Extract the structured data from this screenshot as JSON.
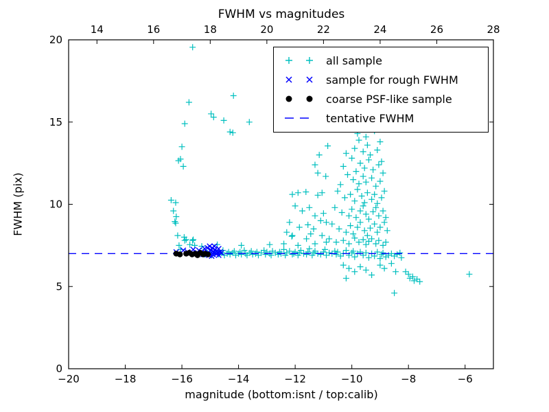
{
  "chart_data": {
    "type": "scatter",
    "title": "FWHM vs magnitudes",
    "xlabel": "magnitude (bottom:isnt / top:calib)",
    "ylabel": "FWHM (pix)",
    "grid": false,
    "legend_position": "upper right",
    "x_bottom": {
      "min": -20,
      "max": -5,
      "ticks": [
        -20,
        -18,
        -16,
        -14,
        -12,
        -10,
        -8,
        -6
      ]
    },
    "x_top": {
      "min": 13,
      "max": 28,
      "ticks": [
        14,
        16,
        18,
        20,
        22,
        24,
        26,
        28
      ]
    },
    "y": {
      "min": 0,
      "max": 20,
      "ticks": [
        0,
        5,
        10,
        15,
        20
      ]
    },
    "tentative_fwhm": 7.0,
    "colors": {
      "cyan": "#00bfbf",
      "blue": "#0000ff",
      "black": "#000000",
      "axis": "#000000"
    },
    "series": [
      {
        "name": "all sample",
        "marker": "plus",
        "color": "#00bfbf",
        "points": [
          [
            -15.62,
            19.55
          ],
          [
            -15.75,
            16.2
          ],
          [
            -14.97,
            15.5
          ],
          [
            -14.88,
            15.3
          ],
          [
            -14.52,
            15.1
          ],
          [
            -13.62,
            15.0
          ],
          [
            -14.18,
            16.6
          ],
          [
            -15.9,
            14.9
          ],
          [
            -14.3,
            14.4
          ],
          [
            -14.2,
            14.35
          ],
          [
            -16.0,
            13.5
          ],
          [
            -16.05,
            12.75
          ],
          [
            -16.12,
            12.65
          ],
          [
            -15.95,
            12.3
          ],
          [
            -16.38,
            10.25
          ],
          [
            -16.22,
            10.1
          ],
          [
            -16.3,
            9.6
          ],
          [
            -16.2,
            9.25
          ],
          [
            -16.25,
            8.95
          ],
          [
            -16.22,
            8.85
          ],
          [
            -16.15,
            8.1
          ],
          [
            -15.92,
            8.0
          ],
          [
            -16.1,
            7.5
          ],
          [
            -15.85,
            7.85
          ],
          [
            -15.62,
            7.8
          ],
          [
            -15.72,
            7.55
          ],
          [
            -15.55,
            7.5
          ],
          [
            -16.05,
            7.25
          ],
          [
            -15.3,
            7.45
          ],
          [
            -14.75,
            7.55
          ],
          [
            -12.1,
            10.6
          ],
          [
            -11.9,
            10.7
          ],
          [
            -11.62,
            10.75
          ],
          [
            -11.2,
            10.55
          ],
          [
            -12.0,
            9.9
          ],
          [
            -11.75,
            9.6
          ],
          [
            -11.5,
            9.8
          ],
          [
            -11.3,
            9.3
          ],
          [
            -12.2,
            8.9
          ],
          [
            -11.85,
            8.6
          ],
          [
            -11.55,
            8.75
          ],
          [
            -11.35,
            8.5
          ],
          [
            -11.1,
            9.0
          ],
          [
            -11.0,
            9.45
          ],
          [
            -10.9,
            8.9
          ],
          [
            -11.45,
            8.2
          ],
          [
            -11.05,
            8.1
          ],
          [
            -12.3,
            8.3
          ],
          [
            -12.12,
            8.05
          ],
          [
            -11.15,
            13.0
          ],
          [
            -10.85,
            13.55
          ],
          [
            -11.2,
            11.9
          ],
          [
            -10.92,
            11.7
          ],
          [
            -11.05,
            10.7
          ],
          [
            -11.3,
            12.4
          ],
          [
            -10.1,
            14.55
          ],
          [
            -9.8,
            14.3
          ],
          [
            -9.75,
            13.9
          ],
          [
            -9.5,
            14.1
          ],
          [
            -9.45,
            13.6
          ],
          [
            -9.2,
            14.45
          ],
          [
            -9.0,
            13.8
          ],
          [
            -9.9,
            13.4
          ],
          [
            -9.6,
            13.2
          ],
          [
            -9.35,
            13.0
          ],
          [
            -10.2,
            13.1
          ],
          [
            -9.1,
            13.3
          ],
          [
            -10.0,
            12.8
          ],
          [
            -9.7,
            12.5
          ],
          [
            -9.55,
            12.2
          ],
          [
            -9.4,
            12.7
          ],
          [
            -9.25,
            12.1
          ],
          [
            -9.05,
            12.4
          ],
          [
            -9.85,
            12.0
          ],
          [
            -10.3,
            12.3
          ],
          [
            -8.95,
            12.6
          ],
          [
            -10.15,
            11.8
          ],
          [
            -9.95,
            11.5
          ],
          [
            -9.75,
            11.25
          ],
          [
            -9.6,
            11.7
          ],
          [
            -9.5,
            11.35
          ],
          [
            -9.3,
            11.6
          ],
          [
            -9.15,
            11.1
          ],
          [
            -9.0,
            11.4
          ],
          [
            -8.9,
            11.9
          ],
          [
            -10.4,
            11.2
          ],
          [
            -10.5,
            10.8
          ],
          [
            -10.25,
            10.4
          ],
          [
            -10.05,
            10.6
          ],
          [
            -9.9,
            10.2
          ],
          [
            -9.8,
            10.9
          ],
          [
            -9.65,
            10.5
          ],
          [
            -9.55,
            10.1
          ],
          [
            -9.45,
            10.7
          ],
          [
            -9.3,
            10.3
          ],
          [
            -9.2,
            10.6
          ],
          [
            -9.1,
            10.05
          ],
          [
            -8.95,
            10.4
          ],
          [
            -8.85,
            10.8
          ],
          [
            -10.6,
            9.8
          ],
          [
            -10.35,
            9.5
          ],
          [
            -10.1,
            9.3
          ],
          [
            -10.0,
            9.7
          ],
          [
            -9.85,
            9.2
          ],
          [
            -9.7,
            9.6
          ],
          [
            -9.6,
            9.9
          ],
          [
            -9.5,
            9.4
          ],
          [
            -9.4,
            9.1
          ],
          [
            -9.25,
            9.55
          ],
          [
            -9.15,
            9.8
          ],
          [
            -9.05,
            9.3
          ],
          [
            -8.9,
            9.6
          ],
          [
            -8.8,
            9.2
          ],
          [
            -10.7,
            8.8
          ],
          [
            -10.45,
            8.5
          ],
          [
            -10.2,
            8.3
          ],
          [
            -10.05,
            8.7
          ],
          [
            -9.95,
            8.2
          ],
          [
            -9.8,
            8.6
          ],
          [
            -9.7,
            8.9
          ],
          [
            -9.55,
            8.4
          ],
          [
            -9.45,
            8.1
          ],
          [
            -9.35,
            8.55
          ],
          [
            -9.2,
            8.8
          ],
          [
            -9.1,
            8.3
          ],
          [
            -9.0,
            8.6
          ],
          [
            -8.85,
            8.9
          ],
          [
            -8.75,
            8.4
          ],
          [
            -10.8,
            7.9
          ],
          [
            -10.55,
            7.7
          ],
          [
            -10.3,
            7.8
          ],
          [
            -10.1,
            7.6
          ],
          [
            -9.9,
            7.95
          ],
          [
            -9.75,
            7.7
          ],
          [
            -9.6,
            7.85
          ],
          [
            -9.5,
            7.55
          ],
          [
            -9.4,
            7.75
          ],
          [
            -9.3,
            7.9
          ],
          [
            -9.15,
            7.6
          ],
          [
            -9.05,
            7.8
          ],
          [
            -8.9,
            7.5
          ],
          [
            -8.8,
            7.7
          ],
          [
            -15.25,
            7.1
          ],
          [
            -15.2,
            6.95
          ],
          [
            -15.1,
            7.05
          ],
          [
            -15.0,
            7.1
          ],
          [
            -14.95,
            6.9
          ],
          [
            -14.85,
            7.0
          ],
          [
            -14.8,
            7.15
          ],
          [
            -14.7,
            6.95
          ],
          [
            -14.6,
            7.05
          ],
          [
            -14.55,
            7.2
          ],
          [
            -14.5,
            6.9
          ],
          [
            -14.4,
            7.0
          ],
          [
            -14.35,
            7.1
          ],
          [
            -14.3,
            6.95
          ],
          [
            -14.2,
            7.05
          ],
          [
            -14.15,
            7.15
          ],
          [
            -14.1,
            6.9
          ],
          [
            -14.0,
            7.0
          ],
          [
            -13.95,
            7.1
          ],
          [
            -13.9,
            6.95
          ],
          [
            -13.8,
            7.2
          ],
          [
            -13.75,
            7.0
          ],
          [
            -13.7,
            6.9
          ],
          [
            -13.6,
            7.05
          ],
          [
            -13.55,
            7.15
          ],
          [
            -13.5,
            6.95
          ],
          [
            -13.4,
            7.0
          ],
          [
            -13.35,
            7.1
          ],
          [
            -13.3,
            6.9
          ],
          [
            -13.2,
            7.05
          ],
          [
            -13.1,
            7.2
          ],
          [
            -13.05,
            6.95
          ],
          [
            -13.0,
            7.1
          ],
          [
            -12.9,
            7.0
          ],
          [
            -12.85,
            6.9
          ],
          [
            -12.8,
            7.15
          ],
          [
            -12.7,
            7.05
          ],
          [
            -12.6,
            6.95
          ],
          [
            -12.55,
            7.1
          ],
          [
            -12.5,
            7.0
          ],
          [
            -12.4,
            7.25
          ],
          [
            -12.35,
            6.9
          ],
          [
            -12.3,
            7.05
          ],
          [
            -12.2,
            7.15
          ],
          [
            -12.1,
            6.95
          ],
          [
            -12.05,
            7.0
          ],
          [
            -12.0,
            7.1
          ],
          [
            -11.9,
            6.9
          ],
          [
            -11.85,
            7.05
          ],
          [
            -11.8,
            7.2
          ],
          [
            -11.7,
            7.0
          ],
          [
            -11.6,
            6.95
          ],
          [
            -11.55,
            7.1
          ],
          [
            -11.5,
            7.3
          ],
          [
            -11.4,
            6.9
          ],
          [
            -11.35,
            7.05
          ],
          [
            -11.3,
            7.15
          ],
          [
            -11.2,
            7.0
          ],
          [
            -11.1,
            6.95
          ],
          [
            -11.0,
            7.1
          ],
          [
            -10.95,
            7.25
          ],
          [
            -10.9,
            6.9
          ],
          [
            -10.8,
            7.05
          ],
          [
            -10.7,
            7.0
          ],
          [
            -10.6,
            7.15
          ],
          [
            -10.55,
            6.95
          ],
          [
            -10.5,
            7.1
          ],
          [
            -10.4,
            6.85
          ],
          [
            -10.3,
            7.0
          ],
          [
            -10.2,
            7.2
          ],
          [
            -10.1,
            6.9
          ],
          [
            -10.0,
            7.05
          ],
          [
            -9.95,
            7.15
          ],
          [
            -9.9,
            6.8
          ],
          [
            -9.8,
            7.0
          ],
          [
            -9.7,
            7.1
          ],
          [
            -9.6,
            6.9
          ],
          [
            -9.5,
            7.05
          ],
          [
            -9.4,
            6.75
          ],
          [
            -9.3,
            7.0
          ],
          [
            -9.2,
            6.85
          ],
          [
            -9.1,
            7.1
          ],
          [
            -9.0,
            6.7
          ],
          [
            -8.95,
            6.95
          ],
          [
            -8.9,
            7.05
          ],
          [
            -8.8,
            6.8
          ],
          [
            -8.7,
            6.9
          ],
          [
            -8.6,
            7.0
          ],
          [
            -8.5,
            6.85
          ],
          [
            -8.4,
            6.95
          ],
          [
            -8.3,
            7.05
          ],
          [
            -8.25,
            6.75
          ],
          [
            -15.9,
            7.8
          ],
          [
            -15.6,
            7.85
          ],
          [
            -13.9,
            7.5
          ],
          [
            -12.9,
            7.55
          ],
          [
            -12.4,
            7.6
          ],
          [
            -11.9,
            7.5
          ],
          [
            -11.3,
            7.6
          ],
          [
            -10.9,
            7.7
          ],
          [
            -12.1,
            8.1
          ],
          [
            -11.6,
            7.9
          ],
          [
            -10.3,
            6.3
          ],
          [
            -10.1,
            6.1
          ],
          [
            -9.9,
            5.9
          ],
          [
            -9.7,
            6.2
          ],
          [
            -9.5,
            6.0
          ],
          [
            -9.3,
            5.7
          ],
          [
            -10.2,
            5.5
          ],
          [
            -9.0,
            6.3
          ],
          [
            -8.85,
            6.1
          ],
          [
            -8.6,
            6.4
          ],
          [
            -8.45,
            5.9
          ],
          [
            -8.1,
            5.9
          ],
          [
            -8.0,
            5.75
          ],
          [
            -7.95,
            5.5
          ],
          [
            -7.85,
            5.6
          ],
          [
            -7.8,
            5.35
          ],
          [
            -7.7,
            5.45
          ],
          [
            -7.6,
            5.3
          ],
          [
            -8.5,
            4.6
          ],
          [
            -5.85,
            5.75
          ]
        ]
      },
      {
        "name": "sample for rough FWHM",
        "marker": "x",
        "color": "#0000ff",
        "points": [
          [
            -16.2,
            7.1
          ],
          [
            -15.95,
            7.2
          ],
          [
            -15.8,
            7.1
          ],
          [
            -15.6,
            7.25
          ],
          [
            -15.45,
            7.05
          ],
          [
            -15.3,
            7.1
          ],
          [
            -15.2,
            7.3
          ],
          [
            -15.15,
            7.0
          ],
          [
            -15.1,
            7.35
          ],
          [
            -15.08,
            7.05
          ],
          [
            -15.02,
            7.45
          ],
          [
            -15.0,
            7.0
          ],
          [
            -14.97,
            7.2
          ],
          [
            -14.93,
            7.35
          ],
          [
            -14.9,
            6.95
          ],
          [
            -14.87,
            7.1
          ],
          [
            -14.83,
            7.25
          ],
          [
            -14.8,
            7.0
          ],
          [
            -14.77,
            7.15
          ],
          [
            -14.73,
            7.05
          ],
          [
            -14.95,
            6.85
          ],
          [
            -15.05,
            6.9
          ],
          [
            -14.85,
            7.45
          ],
          [
            -14.7,
            7.3
          ],
          [
            -14.65,
            7.1
          ],
          [
            -15.25,
            6.95
          ],
          [
            -15.4,
            7.2
          ],
          [
            -15.5,
            7.0
          ],
          [
            -14.7,
            6.9
          ],
          [
            -14.6,
            7.05
          ]
        ]
      },
      {
        "name": "coarse PSF-like sample",
        "marker": "dot",
        "color": "#000000",
        "points": [
          [
            -16.2,
            7.0
          ],
          [
            -16.07,
            6.95
          ],
          [
            -15.85,
            7.0
          ],
          [
            -15.74,
            7.05
          ],
          [
            -15.64,
            6.95
          ],
          [
            -15.52,
            7.0
          ],
          [
            -15.45,
            6.9
          ],
          [
            -15.35,
            7.05
          ],
          [
            -15.25,
            6.95
          ],
          [
            -15.18,
            7.0
          ],
          [
            -15.08,
            6.95
          ]
        ]
      },
      {
        "name": "tentative FWHM",
        "marker": "dashed-line",
        "color": "#0000ff",
        "y": 7.0
      }
    ]
  }
}
